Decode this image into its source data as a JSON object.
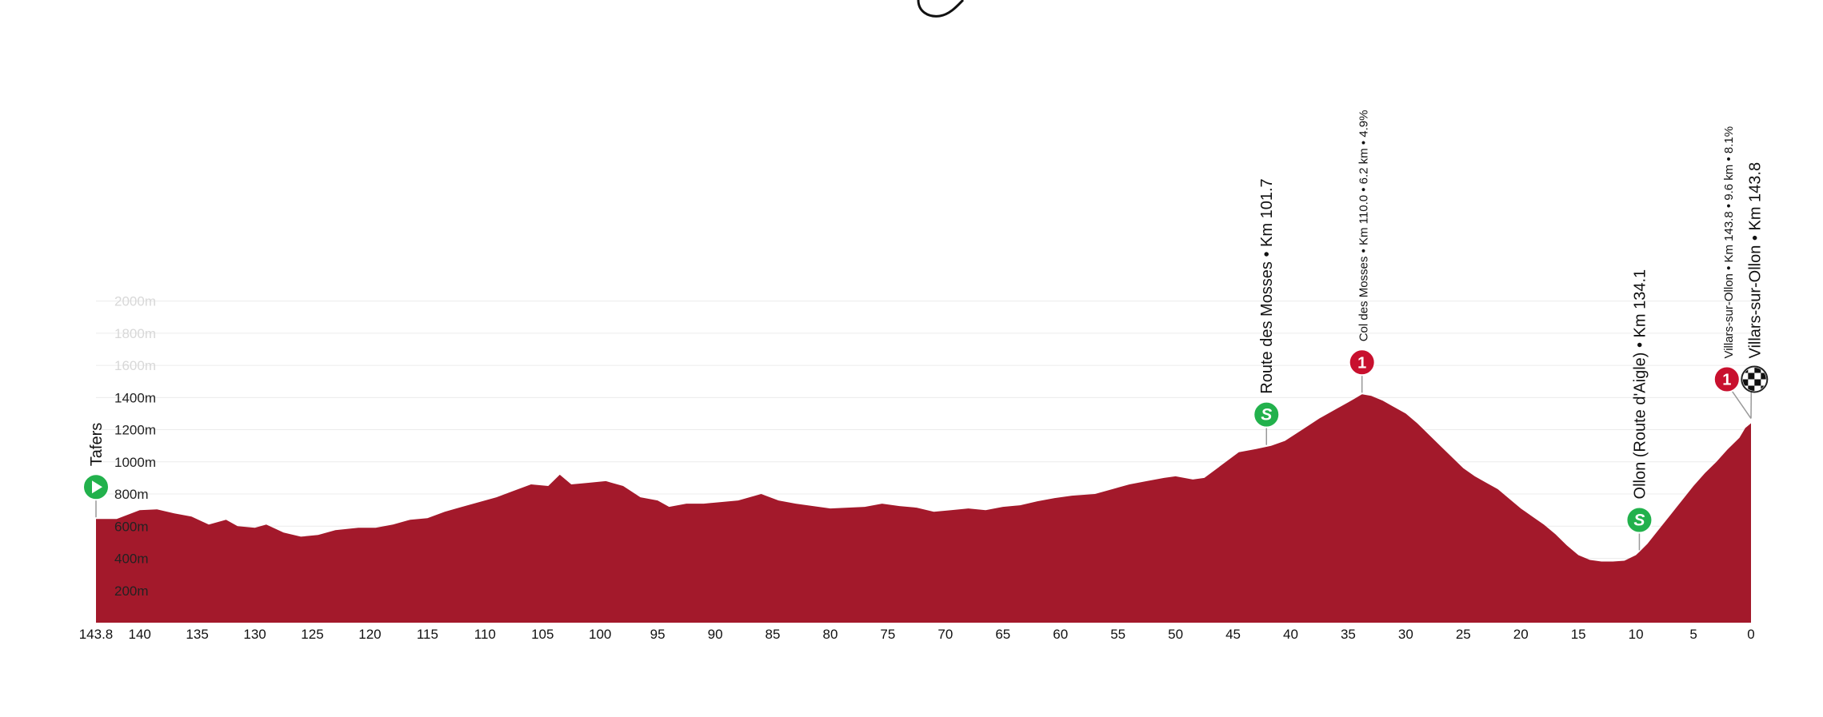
{
  "chart_data": {
    "type": "area",
    "title": "",
    "xlabel": "",
    "ylabel": "",
    "x_axis": "km to go",
    "xlim": [
      143.8,
      0
    ],
    "ylim": [
      0,
      2000
    ],
    "grid": true,
    "fill_color": "#a3192b",
    "sprint_color": "#22b14c",
    "kom_color": "#c8102e",
    "start_color": "#22b14c",
    "x_ticks": [
      "143.8",
      "140",
      "135",
      "130",
      "125",
      "120",
      "115",
      "110",
      "105",
      "100",
      "95",
      "90",
      "85",
      "80",
      "75",
      "70",
      "65",
      "60",
      "55",
      "50",
      "45",
      "40",
      "35",
      "30",
      "25",
      "20",
      "15",
      "10",
      "5",
      "0"
    ],
    "y_ticks": [
      "200m",
      "400m",
      "600m",
      "800m",
      "1000m",
      "1200m",
      "1400m",
      "1600m",
      "1800m",
      "2000m"
    ],
    "profile": [
      [
        143.8,
        645
      ],
      [
        142,
        645
      ],
      [
        140,
        700
      ],
      [
        138.5,
        705
      ],
      [
        137,
        680
      ],
      [
        135.5,
        660
      ],
      [
        134,
        610
      ],
      [
        132.5,
        640
      ],
      [
        131.5,
        600
      ],
      [
        130,
        590
      ],
      [
        129,
        610
      ],
      [
        127.5,
        560
      ],
      [
        126,
        535
      ],
      [
        124.5,
        545
      ],
      [
        123,
        575
      ],
      [
        121,
        590
      ],
      [
        119.5,
        590
      ],
      [
        118,
        610
      ],
      [
        116.5,
        640
      ],
      [
        115,
        650
      ],
      [
        113.5,
        690
      ],
      [
        112,
        720
      ],
      [
        110.5,
        750
      ],
      [
        109,
        780
      ],
      [
        107.5,
        820
      ],
      [
        106,
        860
      ],
      [
        104.5,
        850
      ],
      [
        103.5,
        920
      ],
      [
        102.5,
        860
      ],
      [
        101,
        870
      ],
      [
        99.5,
        880
      ],
      [
        98,
        850
      ],
      [
        96.5,
        780
      ],
      [
        95,
        760
      ],
      [
        94,
        720
      ],
      [
        92.5,
        740
      ],
      [
        91,
        740
      ],
      [
        89.5,
        750
      ],
      [
        88,
        760
      ],
      [
        86,
        800
      ],
      [
        84.5,
        760
      ],
      [
        83,
        740
      ],
      [
        81.5,
        725
      ],
      [
        80,
        710
      ],
      [
        78.5,
        715
      ],
      [
        77,
        720
      ],
      [
        75.5,
        740
      ],
      [
        74,
        725
      ],
      [
        72.5,
        715
      ],
      [
        71,
        690
      ],
      [
        69.5,
        700
      ],
      [
        68,
        710
      ],
      [
        66.5,
        700
      ],
      [
        65,
        720
      ],
      [
        63.5,
        730
      ],
      [
        62,
        755
      ],
      [
        60.5,
        775
      ],
      [
        59,
        790
      ],
      [
        57,
        800
      ],
      [
        55.5,
        830
      ],
      [
        54,
        860
      ],
      [
        52.5,
        880
      ],
      [
        51,
        900
      ],
      [
        50,
        910
      ],
      [
        48.5,
        890
      ],
      [
        47.5,
        900
      ],
      [
        46,
        980
      ],
      [
        44.5,
        1060
      ],
      [
        43,
        1080
      ],
      [
        41.7,
        1100
      ],
      [
        40.5,
        1130
      ],
      [
        39,
        1200
      ],
      [
        37.5,
        1270
      ],
      [
        36,
        1330
      ],
      [
        35,
        1370
      ],
      [
        34.5,
        1390
      ],
      [
        33.8,
        1420
      ],
      [
        33,
        1410
      ],
      [
        32,
        1380
      ],
      [
        31,
        1340
      ],
      [
        30,
        1300
      ],
      [
        29,
        1240
      ],
      [
        28,
        1170
      ],
      [
        27,
        1100
      ],
      [
        26,
        1030
      ],
      [
        25,
        960
      ],
      [
        24,
        910
      ],
      [
        23,
        870
      ],
      [
        22,
        830
      ],
      [
        21,
        770
      ],
      [
        20,
        710
      ],
      [
        19,
        660
      ],
      [
        18,
        610
      ],
      [
        17,
        550
      ],
      [
        16,
        480
      ],
      [
        15,
        420
      ],
      [
        14,
        390
      ],
      [
        13,
        380
      ],
      [
        12,
        380
      ],
      [
        11,
        385
      ],
      [
        10,
        420
      ],
      [
        9.7,
        440
      ],
      [
        9,
        490
      ],
      [
        8,
        580
      ],
      [
        7,
        670
      ],
      [
        6,
        760
      ],
      [
        5,
        850
      ],
      [
        4,
        930
      ],
      [
        3,
        1000
      ],
      [
        2,
        1080
      ],
      [
        1,
        1150
      ],
      [
        0.5,
        1210
      ],
      [
        0,
        1240
      ]
    ],
    "points": [
      {
        "id": "start",
        "km": 143.8,
        "type": "start",
        "label": "Tafers",
        "alt": 645,
        "label_offset": 40
      },
      {
        "id": "sprint-mosses",
        "km": 42.1,
        "type": "sprint",
        "label": "Route des Mosses • Km 101.7",
        "alt": 1095,
        "label_offset": 40
      },
      {
        "id": "kom-mosses",
        "km": 33.8,
        "type": "kom",
        "label": "Col des Mosses • Km 110.0 • 6.2 km • 4.9%",
        "alt": 1420,
        "label_offset": 40,
        "small": true
      },
      {
        "id": "sprint-ollon",
        "km": 9.7,
        "type": "sprint",
        "label": "Ollon (Route d'Aigle) • Km 134.1",
        "alt": 440,
        "label_offset": 40
      },
      {
        "id": "kom-villars",
        "km": 2.1,
        "type": "kom",
        "label": "Villars-sur-Ollon • Km 143.8 • 9.6 km • 8.1%",
        "alt": 1240,
        "label_offset": 40,
        "small": true
      },
      {
        "id": "finish",
        "km": -0.3,
        "type": "finish",
        "label": "Villars-sur-Ollon • Km 143.8",
        "alt": 1240,
        "label_offset": 40
      }
    ],
    "badges": {
      "sprint": "S",
      "kom": "1"
    }
  }
}
